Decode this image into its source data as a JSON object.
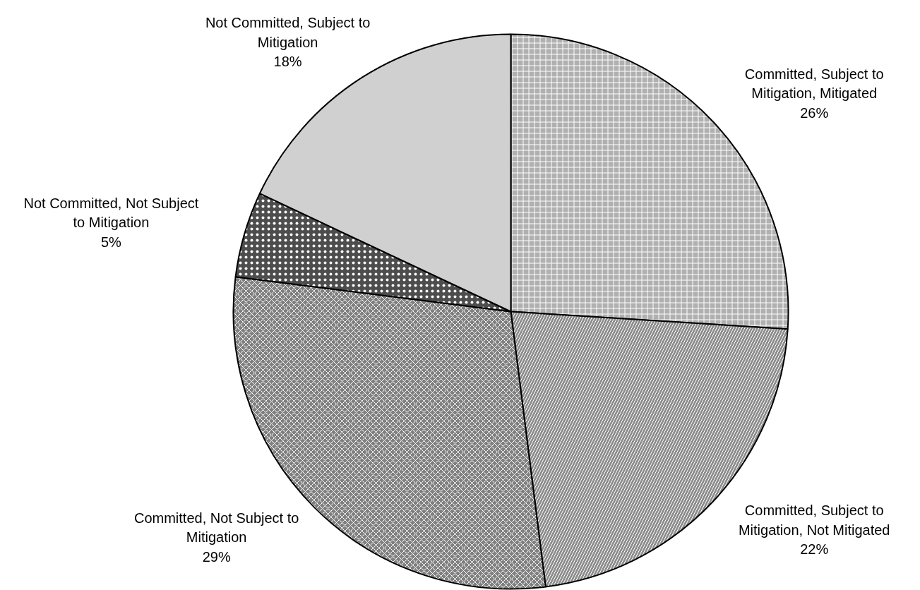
{
  "chart_data": {
    "type": "pie",
    "categories": [
      "Committed, Subject to Mitigation, Mitigated",
      "Committed, Subject to Mitigation, Not Mitigated",
      "Committed, Not Subject to Mitigation",
      "Not Committed, Not Subject to Mitigation",
      "Not Committed, Subject to Mitigation"
    ],
    "values": [
      26,
      22,
      29,
      5,
      18
    ],
    "value_labels": [
      "26%",
      "22%",
      "29%",
      "5%",
      "18%"
    ],
    "colors": [
      "#b0b0b0",
      "#8c8c8c",
      "#808080",
      "#4d4d4d",
      "#d0d0d0"
    ]
  }
}
